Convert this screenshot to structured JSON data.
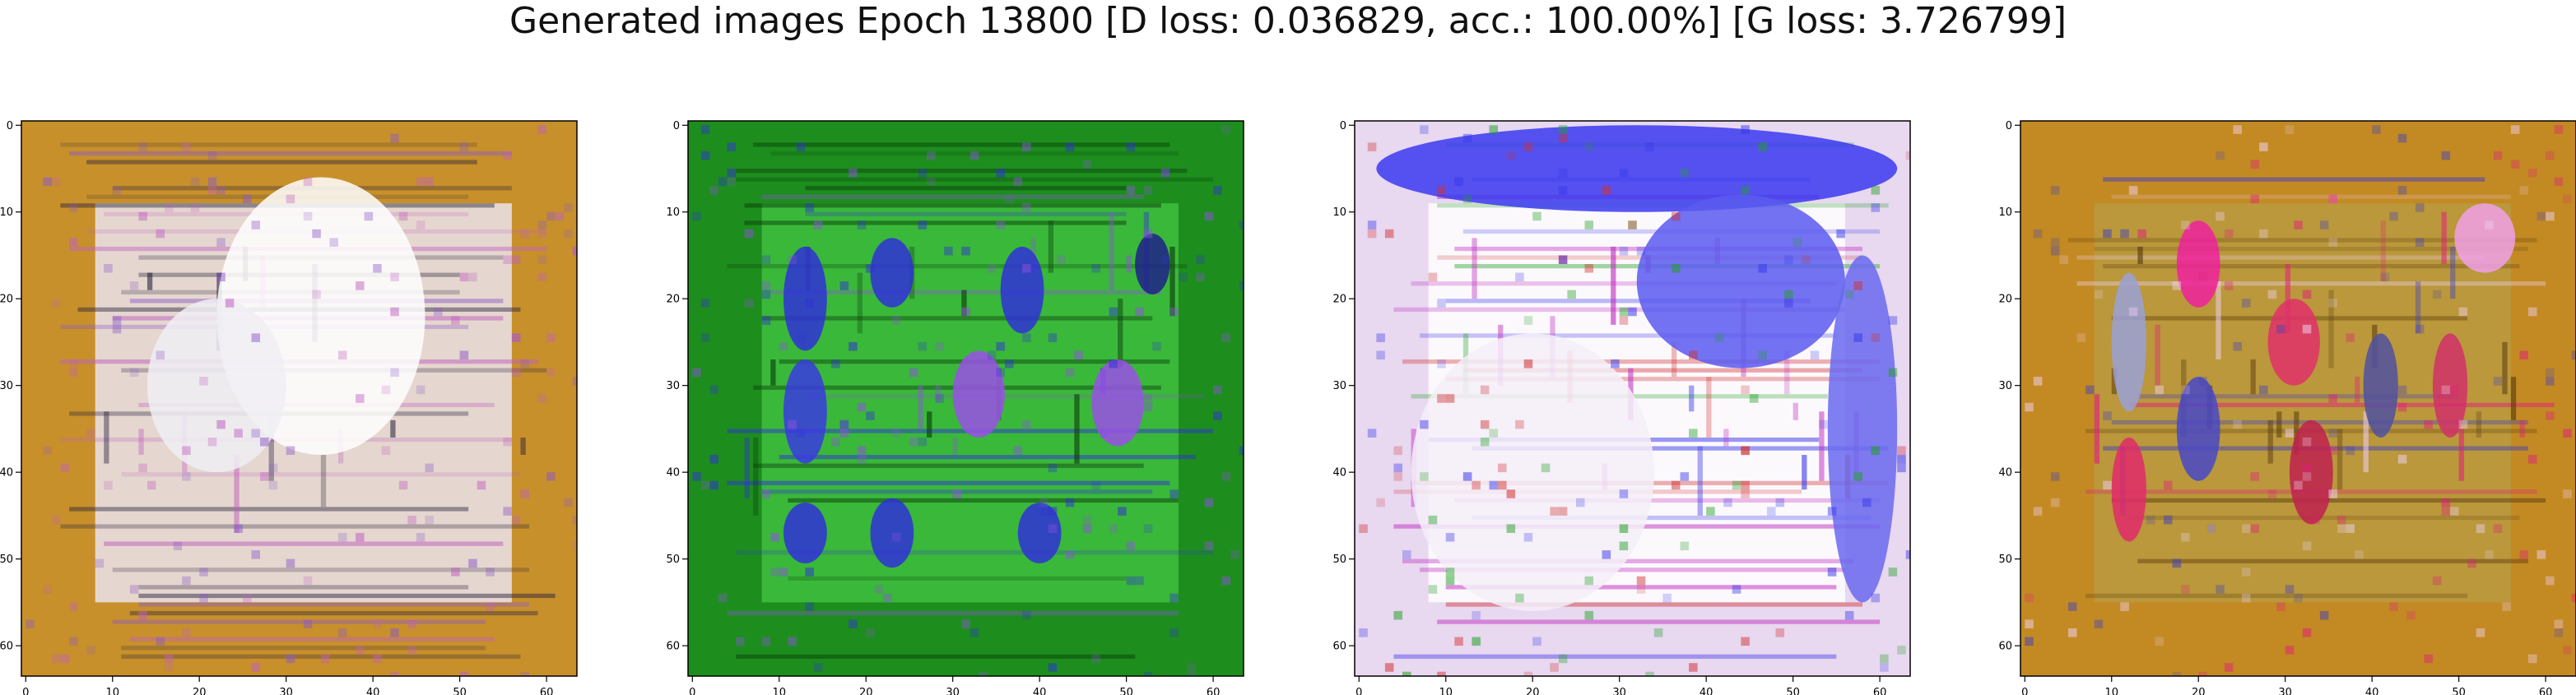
{
  "figure": {
    "suptitle": "Generated images Epoch 13800 [D loss: 0.036829, acc.: 100.00%] [G loss: 3.726799]"
  },
  "chart_data": [
    {
      "type": "heatmap",
      "content": "generated image 1: cream/white document-like texture with dark horizontal text strokes on a mustard-orange background",
      "palette": {
        "background": "#c8902a",
        "content": "#eae4ec",
        "marks": "#2a2440",
        "accents": [
          "#8a5ac8",
          "#c060c0"
        ]
      },
      "xlim": [
        -0.5,
        63.5
      ],
      "ylim": [
        63.5,
        -0.5
      ],
      "xticks": [
        0,
        10,
        20,
        30,
        40,
        50,
        60
      ],
      "yticks": [
        0,
        10,
        20,
        30,
        40,
        50,
        60
      ],
      "blobs": [
        {
          "x": 34,
          "y": 22,
          "rx": 12,
          "ry": 16,
          "color": "#ffffff"
        },
        {
          "x": 22,
          "y": 30,
          "rx": 8,
          "ry": 10,
          "color": "#f0eef4"
        }
      ]
    },
    {
      "type": "heatmap",
      "content": "generated image 2: green background with dark vertical streaks and blue/purple blobs",
      "palette": {
        "background": "#1d8e1d",
        "content": "#3fbf3f",
        "marks": "#0b3d0b",
        "accents": [
          "#3030d8",
          "#9050e0"
        ]
      },
      "xlim": [
        -0.5,
        63.5
      ],
      "ylim": [
        63.5,
        -0.5
      ],
      "xticks": [
        0,
        10,
        20,
        30,
        40,
        50,
        60
      ],
      "yticks": [
        0,
        10,
        20,
        30,
        40,
        50,
        60
      ],
      "blobs": [
        {
          "x": 13,
          "y": 20,
          "rx": 2.5,
          "ry": 6,
          "color": "#3030d8"
        },
        {
          "x": 13,
          "y": 33,
          "rx": 2.5,
          "ry": 6,
          "color": "#3a3ae0"
        },
        {
          "x": 13,
          "y": 47,
          "rx": 2.5,
          "ry": 3.5,
          "color": "#3030d8"
        },
        {
          "x": 23,
          "y": 17,
          "rx": 2.5,
          "ry": 4,
          "color": "#3030d8"
        },
        {
          "x": 23,
          "y": 47,
          "rx": 2.5,
          "ry": 4,
          "color": "#3030d8"
        },
        {
          "x": 33,
          "y": 31,
          "rx": 3,
          "ry": 5,
          "color": "#9a50e8"
        },
        {
          "x": 38,
          "y": 19,
          "rx": 2.5,
          "ry": 5,
          "color": "#3030d8"
        },
        {
          "x": 40,
          "y": 47,
          "rx": 2.5,
          "ry": 3.5,
          "color": "#3030d8"
        },
        {
          "x": 49,
          "y": 32,
          "rx": 3,
          "ry": 5,
          "color": "#9a50e8"
        },
        {
          "x": 53,
          "y": 16,
          "rx": 2,
          "ry": 3.5,
          "color": "#20208a"
        }
      ]
    },
    {
      "type": "heatmap",
      "content": "generated image 3: blue band at top, white/pink grid-like pattern with colored specks",
      "palette": {
        "background": "#e8d8f0",
        "content": "#ffffff",
        "marks": "#c030c0",
        "accents": [
          "#3838e8",
          "#20a020",
          "#d03030"
        ]
      },
      "xlim": [
        -0.5,
        63.5
      ],
      "ylim": [
        63.5,
        -0.5
      ],
      "xticks": [
        0,
        10,
        20,
        30,
        40,
        50,
        60
      ],
      "yticks": [
        0,
        10,
        20,
        30,
        40,
        50,
        60
      ],
      "blobs": [
        {
          "x": 32,
          "y": 5,
          "rx": 30,
          "ry": 5,
          "color": "#3a3af0"
        },
        {
          "x": 44,
          "y": 18,
          "rx": 12,
          "ry": 10,
          "color": "#5a5af0"
        },
        {
          "x": 58,
          "y": 35,
          "rx": 4,
          "ry": 20,
          "color": "#6a6af0"
        },
        {
          "x": 20,
          "y": 40,
          "rx": 14,
          "ry": 16,
          "color": "#f4eef8"
        }
      ]
    },
    {
      "type": "heatmap",
      "content": "generated image 4: mustard-orange background with red/pink and blue vertical streaks",
      "palette": {
        "background": "#c38a23",
        "content": "#b89a40",
        "marks": "#5a3a10",
        "accents": [
          "#e0207a",
          "#4040c0",
          "#f0d0f0"
        ]
      },
      "xlim": [
        -0.5,
        63.5
      ],
      "ylim": [
        63.5,
        -0.5
      ],
      "xticks": [
        0,
        10,
        20,
        30,
        40,
        50,
        60
      ],
      "yticks": [
        0,
        10,
        20,
        30,
        40,
        50,
        60
      ],
      "blobs": [
        {
          "x": 12,
          "y": 25,
          "rx": 2,
          "ry": 8,
          "color": "#9aa0d8"
        },
        {
          "x": 12,
          "y": 42,
          "rx": 2,
          "ry": 6,
          "color": "#e02a6a"
        },
        {
          "x": 20,
          "y": 16,
          "rx": 2.5,
          "ry": 5,
          "color": "#f020a0"
        },
        {
          "x": 20,
          "y": 35,
          "rx": 2.5,
          "ry": 6,
          "color": "#4848c8"
        },
        {
          "x": 31,
          "y": 25,
          "rx": 3,
          "ry": 5,
          "color": "#e0306a"
        },
        {
          "x": 33,
          "y": 40,
          "rx": 2.5,
          "ry": 6,
          "color": "#c02050"
        },
        {
          "x": 49,
          "y": 30,
          "rx": 2,
          "ry": 6,
          "color": "#d0306a"
        },
        {
          "x": 53,
          "y": 13,
          "rx": 3.5,
          "ry": 4,
          "color": "#f0a0e8"
        },
        {
          "x": 41,
          "y": 30,
          "rx": 2,
          "ry": 6,
          "color": "#5050a0"
        }
      ]
    }
  ]
}
